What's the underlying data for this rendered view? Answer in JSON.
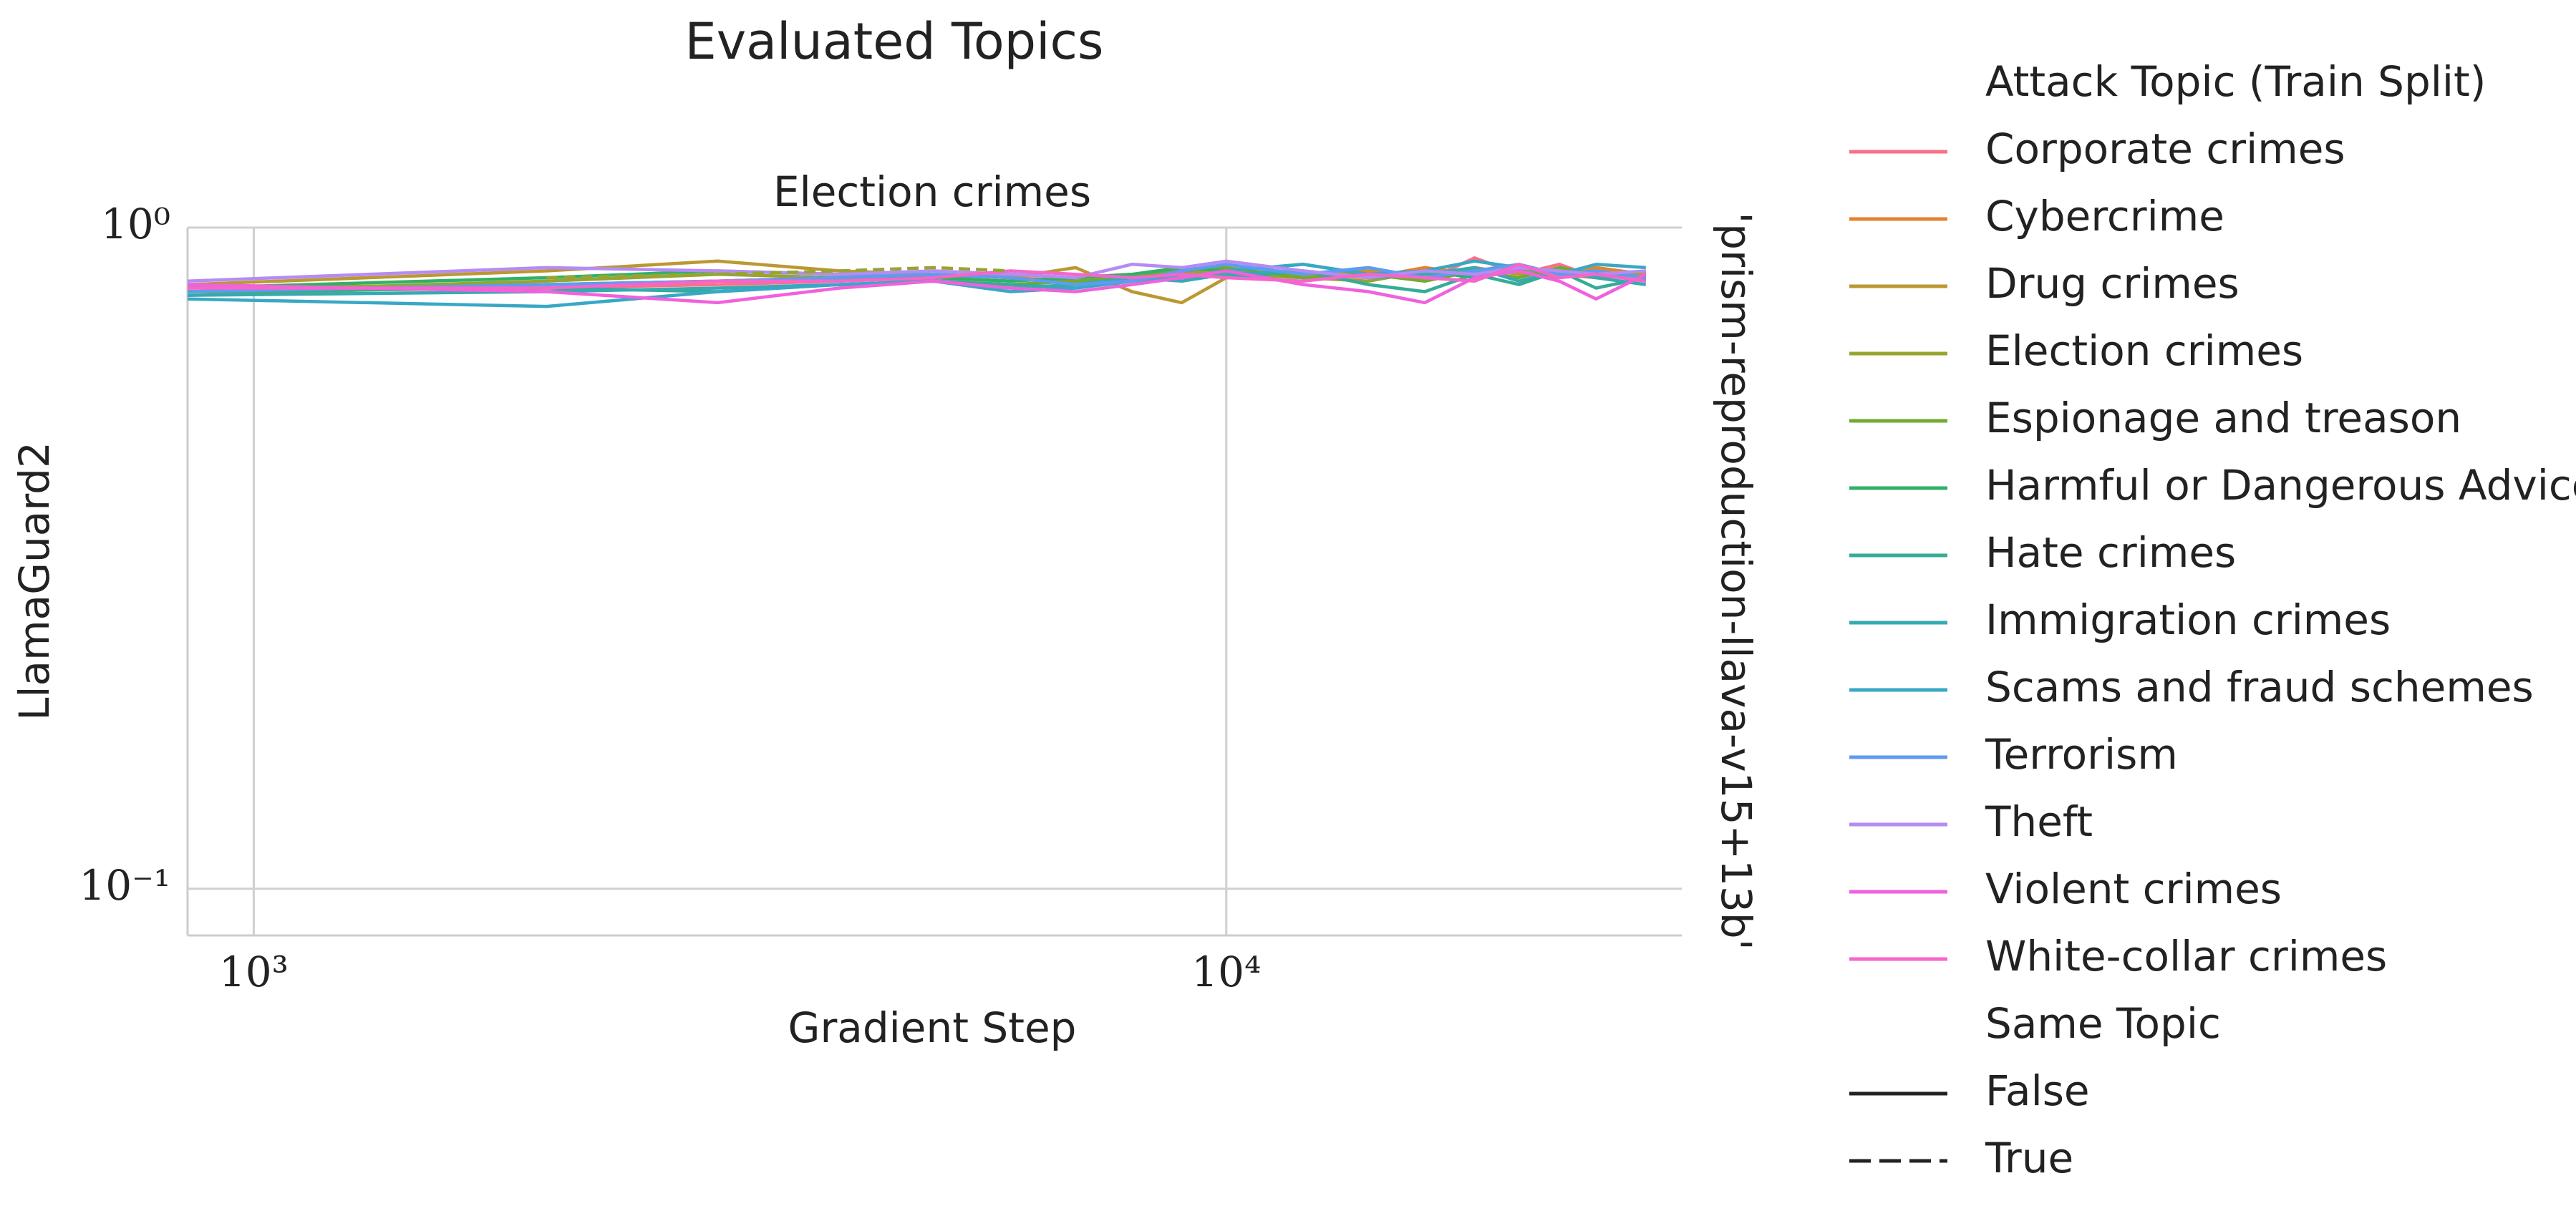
{
  "chart_data": {
    "type": "line",
    "title": "Evaluated Topics",
    "subtitle": "Election crimes",
    "x_label": "Gradient Step",
    "y_label": "LlamaGuard2",
    "facet_label": "'prism-reproduction-llava-v15+13b'",
    "log_x": true,
    "log_y": true,
    "grid": true,
    "legend_position": "right",
    "legend_title": "Attack Topic (Train Split)",
    "style_legend": {
      "title": "Same Topic",
      "entries": [
        {
          "label": "False",
          "dashed": false
        },
        {
          "label": "True",
          "dashed": true
        }
      ]
    },
    "xlim": [
      855,
      29400
    ],
    "ylim": [
      0.085,
      1
    ],
    "xticks": [
      {
        "value": 1000,
        "label": "10³"
      },
      {
        "value": 10000,
        "label": "10⁴"
      }
    ],
    "yticks": [
      {
        "value": 0.1,
        "label": "10⁻¹"
      },
      {
        "value": 1,
        "label": "10⁰"
      }
    ],
    "x": [
      855,
      2000,
      3000,
      4000,
      5000,
      6000,
      7000,
      8000,
      9000,
      10000,
      12000,
      14000,
      16000,
      18000,
      20000,
      22000,
      24000,
      27000
    ],
    "series": [
      {
        "name": "Corporate crimes",
        "color": "#f77189",
        "same_topic": false,
        "values": [
          0.8,
          0.81,
          0.82,
          0.83,
          0.84,
          0.83,
          0.84,
          0.85,
          0.84,
          0.85,
          0.84,
          0.86,
          0.83,
          0.9,
          0.85,
          0.88,
          0.84,
          0.86
        ]
      },
      {
        "name": "Cybercrime",
        "color": "#e5822d",
        "same_topic": false,
        "values": [
          0.81,
          0.82,
          0.83,
          0.84,
          0.85,
          0.84,
          0.83,
          0.84,
          0.85,
          0.86,
          0.85,
          0.84,
          0.87,
          0.85,
          0.86,
          0.84,
          0.87,
          0.85
        ]
      },
      {
        "name": "Drug crimes",
        "color": "#bb9832",
        "same_topic": false,
        "values": [
          0.82,
          0.86,
          0.89,
          0.86,
          0.85,
          0.84,
          0.87,
          0.8,
          0.77,
          0.84,
          0.85,
          0.86,
          0.84,
          0.87,
          0.85,
          0.86,
          0.84,
          0.85
        ]
      },
      {
        "name": "Election crimes",
        "color": "#97a431",
        "same_topic": false,
        "values": [
          0.8,
          0.83,
          0.85,
          0.84,
          0.84,
          0.85,
          0.84,
          0.85,
          0.86,
          0.85,
          0.84,
          0.83,
          0.86,
          0.84,
          0.87,
          0.85,
          0.84,
          0.86
        ]
      },
      {
        "name": "Espionage and treason",
        "color": "#70ab31",
        "same_topic": false,
        "values": [
          0.79,
          0.82,
          0.83,
          0.84,
          0.83,
          0.82,
          0.83,
          0.84,
          0.86,
          0.87,
          0.84,
          0.85,
          0.83,
          0.86,
          0.84,
          0.87,
          0.85,
          0.83
        ]
      },
      {
        "name": "Harmful or Dangerous Advice",
        "color": "#32b166",
        "same_topic": false,
        "values": [
          0.81,
          0.84,
          0.86,
          0.85,
          0.84,
          0.83,
          0.84,
          0.85,
          0.87,
          0.86,
          0.88,
          0.85,
          0.86,
          0.84,
          0.87,
          0.85,
          0.86,
          0.84
        ]
      },
      {
        "name": "Hate crimes",
        "color": "#35ac96",
        "same_topic": false,
        "values": [
          0.8,
          0.81,
          0.8,
          0.82,
          0.83,
          0.82,
          0.81,
          0.83,
          0.85,
          0.84,
          0.86,
          0.82,
          0.8,
          0.85,
          0.82,
          0.86,
          0.81,
          0.84
        ]
      },
      {
        "name": "Immigration crimes",
        "color": "#36aab0",
        "same_topic": false,
        "values": [
          0.79,
          0.8,
          0.81,
          0.82,
          0.83,
          0.81,
          0.82,
          0.84,
          0.83,
          0.85,
          0.86,
          0.84,
          0.85,
          0.87,
          0.83,
          0.86,
          0.84,
          0.82
        ]
      },
      {
        "name": "Scams and fraud schemes",
        "color": "#38a8c5",
        "same_topic": false,
        "values": [
          0.78,
          0.76,
          0.8,
          0.82,
          0.83,
          0.8,
          0.81,
          0.83,
          0.84,
          0.86,
          0.88,
          0.85,
          0.86,
          0.89,
          0.87,
          0.85,
          0.88,
          0.87
        ]
      },
      {
        "name": "Terrorism",
        "color": "#5f9bf0",
        "same_topic": false,
        "values": [
          0.8,
          0.82,
          0.83,
          0.84,
          0.85,
          0.84,
          0.82,
          0.83,
          0.86,
          0.88,
          0.85,
          0.87,
          0.84,
          0.86,
          0.88,
          0.85,
          0.86,
          0.84
        ]
      },
      {
        "name": "Theft",
        "color": "#b58bf4",
        "same_topic": false,
        "values": [
          0.83,
          0.87,
          0.86,
          0.85,
          0.86,
          0.85,
          0.84,
          0.88,
          0.87,
          0.89,
          0.86,
          0.84,
          0.86,
          0.85,
          0.87,
          0.86,
          0.85,
          0.86
        ]
      },
      {
        "name": "Violent crimes",
        "color": "#f061dd",
        "same_topic": false,
        "values": [
          0.82,
          0.8,
          0.77,
          0.81,
          0.83,
          0.81,
          0.8,
          0.82,
          0.84,
          0.86,
          0.82,
          0.8,
          0.77,
          0.84,
          0.86,
          0.83,
          0.78,
          0.85
        ]
      },
      {
        "name": "White-collar crimes",
        "color": "#f565cc",
        "same_topic": false,
        "values": [
          0.81,
          0.81,
          0.83,
          0.83,
          0.84,
          0.86,
          0.85,
          0.84,
          0.85,
          0.84,
          0.83,
          0.85,
          0.84,
          0.83,
          0.88,
          0.84,
          0.85,
          0.83
        ]
      },
      {
        "name": "Election crimes",
        "color": "#97a431",
        "same_topic": true,
        "values": [
          null,
          0.84,
          0.85,
          0.86,
          0.87,
          0.86,
          null,
          null,
          null,
          null,
          null,
          null,
          null,
          null,
          null,
          null,
          null,
          null
        ]
      }
    ]
  }
}
